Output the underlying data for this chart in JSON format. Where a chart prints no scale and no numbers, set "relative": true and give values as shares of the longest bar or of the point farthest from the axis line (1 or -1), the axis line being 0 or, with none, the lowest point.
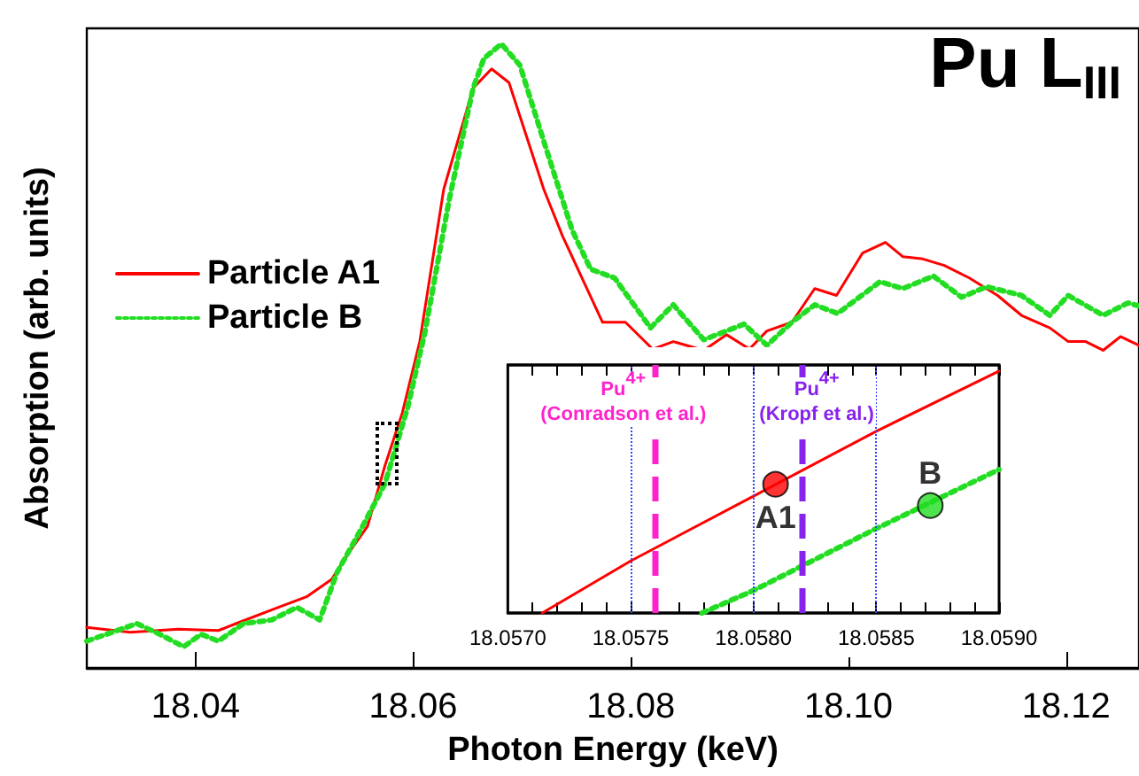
{
  "chart_data": [
    {
      "type": "line",
      "title": "Pu L$_{III}$",
      "xlabel": "Photon Energy (keV)",
      "ylabel": "Absorption (arb. units)",
      "relative": true,
      "legend": "left",
      "grid": false,
      "marker": "none",
      "tick_labels": "x",
      "xlim": [
        18.03,
        18.1267
      ],
      "xticks": [
        {
          "value": 18.04,
          "label": "18.04"
        },
        {
          "value": 18.06,
          "label": "18.06"
        },
        {
          "value": 18.08,
          "label": "18.08"
        },
        {
          "value": 18.1,
          "label": "18.10"
        },
        {
          "value": 18.12,
          "label": "18.12"
        }
      ],
      "series": [
        {
          "name": "Particle A1",
          "color": "#ff0000",
          "line_style": "solid",
          "x": [
            18.03,
            18.034,
            18.0384,
            18.0421,
            18.0437,
            18.0476,
            18.0502,
            18.0525,
            18.0541,
            18.0558,
            18.0574,
            18.059,
            18.0606,
            18.0628,
            18.0655,
            18.0672,
            18.0688,
            18.072,
            18.0737,
            18.0774,
            18.0795,
            18.082,
            18.0839,
            18.0867,
            18.0888,
            18.0909,
            18.0925,
            18.0948,
            18.0969,
            18.0989,
            18.1013,
            18.1034,
            18.105,
            18.1067,
            18.1088,
            18.1111,
            18.1137,
            18.1159,
            18.1185,
            18.1202,
            18.1218,
            18.1234,
            18.125,
            18.1267
          ],
          "values": [
            0.065,
            0.057,
            0.062,
            0.06,
            0.071,
            0.097,
            0.114,
            0.142,
            0.185,
            0.227,
            0.324,
            0.409,
            0.523,
            0.767,
            0.929,
            0.96,
            0.938,
            0.767,
            0.693,
            0.554,
            0.554,
            0.511,
            0.523,
            0.509,
            0.534,
            0.511,
            0.54,
            0.554,
            0.608,
            0.597,
            0.665,
            0.682,
            0.659,
            0.656,
            0.645,
            0.625,
            0.597,
            0.565,
            0.545,
            0.523,
            0.523,
            0.509,
            0.531,
            0.517
          ]
        },
        {
          "name": "Particle B",
          "color": "#22dd22",
          "line_style": "dotted",
          "x": [
            18.03,
            18.0346,
            18.0367,
            18.0389,
            18.0405,
            18.0421,
            18.0444,
            18.047,
            18.0493,
            18.0514,
            18.053,
            18.0551,
            18.0574,
            18.0595,
            18.0611,
            18.0633,
            18.0655,
            18.0665,
            18.0681,
            18.0698,
            18.072,
            18.0746,
            18.0763,
            18.0785,
            18.0818,
            18.0839,
            18.0867,
            18.0904,
            18.0925,
            18.0948,
            18.0969,
            18.099,
            18.1029,
            18.105,
            18.1078,
            18.1104,
            18.1127,
            18.1159,
            18.1185,
            18.1202,
            18.1234,
            18.1257,
            18.1267
          ],
          "values": [
            0.043,
            0.071,
            0.054,
            0.034,
            0.054,
            0.043,
            0.071,
            0.077,
            0.097,
            0.077,
            0.153,
            0.219,
            0.295,
            0.418,
            0.54,
            0.75,
            0.929,
            0.977,
            1.0,
            0.966,
            0.844,
            0.702,
            0.639,
            0.625,
            0.545,
            0.582,
            0.526,
            0.551,
            0.517,
            0.554,
            0.582,
            0.568,
            0.619,
            0.608,
            0.628,
            0.594,
            0.611,
            0.597,
            0.565,
            0.597,
            0.565,
            0.585,
            0.58
          ]
        }
      ]
    },
    {
      "type": "line",
      "relative": true,
      "grid": false,
      "marker": "none",
      "tick_labels": "x",
      "legend": false,
      "xlim": [
        18.057,
        18.059
      ],
      "xticks": [
        {
          "value": 18.057,
          "label": "18.0570"
        },
        {
          "value": 18.0571,
          "label": null
        },
        {
          "value": 18.0572,
          "label": null
        },
        {
          "value": 18.0573,
          "label": null
        },
        {
          "value": 18.0574,
          "label": null
        },
        {
          "value": 18.0575,
          "label": "18.0575"
        },
        {
          "value": 18.0576,
          "label": null
        },
        {
          "value": 18.0577,
          "label": null
        },
        {
          "value": 18.0578,
          "label": null
        },
        {
          "value": 18.0579,
          "label": null
        },
        {
          "value": 18.058,
          "label": "18.0580"
        },
        {
          "value": 18.0581,
          "label": null
        },
        {
          "value": 18.0582,
          "label": null
        },
        {
          "value": 18.0583,
          "label": null
        },
        {
          "value": 18.0584,
          "label": null
        },
        {
          "value": 18.0585,
          "label": "18.0585"
        },
        {
          "value": 18.0586,
          "label": null
        },
        {
          "value": 18.0587,
          "label": null
        },
        {
          "value": 18.0588,
          "label": null
        },
        {
          "value": 18.0589,
          "label": null
        },
        {
          "value": 18.059,
          "label": "18.0590"
        }
      ],
      "series": [
        {
          "color": "#ff0000",
          "line_style": "solid",
          "x": [
            18.05714,
            18.0575,
            18.058,
            18.0585,
            18.059
          ],
          "values": [
            0.0,
            0.215,
            0.483,
            0.751,
            1.0
          ]
        },
        {
          "color": "#22dd22",
          "line_style": "dotted",
          "x": [
            18.05779,
            18.058,
            18.0585,
            18.059
          ],
          "values": [
            0.0,
            0.093,
            0.349,
            0.593
          ]
        },
        {
          "type": "scatter",
          "name": "A1",
          "color": "#ff0000",
          "marker": "circle",
          "x": [
            18.05809
          ],
          "values": [
            0.532
          ]
        },
        {
          "type": "scatter",
          "name": "B",
          "color": "#22dd22",
          "marker": "circle",
          "x": [
            18.05872
          ],
          "values": [
            0.444
          ]
        }
      ],
      "ref_lines": [
        {
          "axis": "x",
          "value": 18.0575,
          "color": "#3344ff",
          "line_style": "dotted"
        },
        {
          "axis": "x",
          "value": 18.058,
          "color": "#3344ff",
          "line_style": "dotted"
        },
        {
          "axis": "x",
          "value": 18.0585,
          "color": "#3344ff",
          "line_style": "dotted"
        },
        {
          "axis": "x",
          "value": 18.0576,
          "color": "#ff22cc",
          "line_style": "dashed",
          "label": "Pu$^{4+}$\n(Conradson et al.)"
        },
        {
          "axis": "x",
          "value": 18.0582,
          "color": "#8822ee",
          "line_style": "dashed",
          "label": "Pu$^{4+}$\n(Kropf et al.)"
        }
      ]
    }
  ]
}
